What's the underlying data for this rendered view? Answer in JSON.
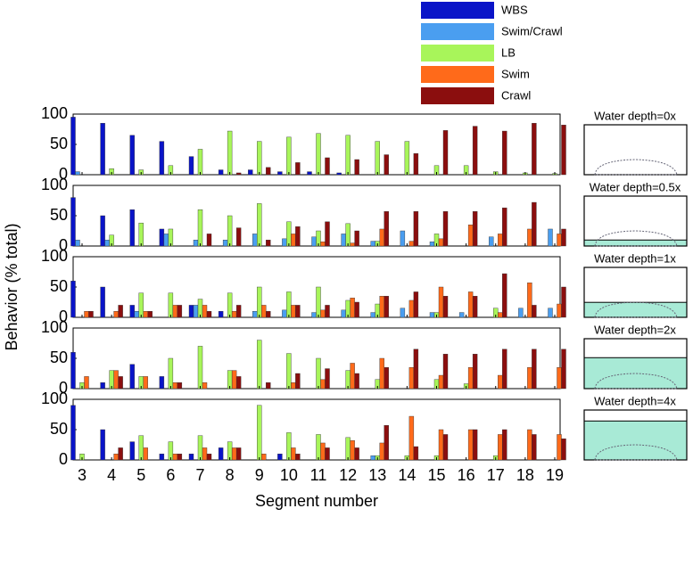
{
  "chart_data": [
    {
      "type": "bar",
      "title": "Water depth=0x",
      "ylim": [
        0,
        100
      ],
      "yticks": [
        0,
        50,
        100
      ],
      "series": [
        {
          "name": "WBS",
          "color": "#0a14c8",
          "values": [
            95,
            85,
            65,
            55,
            30,
            8,
            8,
            5,
            5,
            3,
            0,
            0,
            0,
            0,
            0,
            0,
            0
          ]
        },
        {
          "name": "Swim/Crawl",
          "color": "#4a9ef0",
          "values": [
            5,
            0,
            0,
            0,
            0,
            0,
            0,
            0,
            0,
            0,
            0,
            0,
            0,
            0,
            0,
            0,
            0
          ]
        },
        {
          "name": "LB",
          "color": "#a8f55a",
          "values": [
            0,
            10,
            8,
            15,
            42,
            72,
            55,
            62,
            68,
            65,
            55,
            55,
            15,
            15,
            5,
            3,
            2
          ]
        },
        {
          "name": "Swim",
          "color": "#ff6a1a",
          "values": [
            0,
            0,
            0,
            0,
            0,
            0,
            0,
            0,
            0,
            0,
            0,
            0,
            0,
            0,
            0,
            0,
            0
          ]
        },
        {
          "name": "Crawl",
          "color": "#8b0e0e",
          "values": [
            0,
            0,
            0,
            0,
            0,
            3,
            12,
            20,
            28,
            25,
            33,
            35,
            73,
            80,
            72,
            85,
            82
          ]
        }
      ]
    },
    {
      "type": "bar",
      "title": "Water depth=0.5x",
      "ylim": [
        0,
        100
      ],
      "yticks": [
        0,
        50,
        100
      ],
      "series": [
        {
          "values": [
            80,
            50,
            60,
            28,
            0,
            0,
            0,
            0,
            0,
            0,
            0,
            0,
            0,
            0,
            0,
            0,
            0
          ]
        },
        {
          "values": [
            10,
            10,
            0,
            20,
            10,
            10,
            20,
            12,
            15,
            20,
            8,
            25,
            7,
            0,
            15,
            0,
            28
          ]
        },
        {
          "values": [
            0,
            18,
            38,
            28,
            60,
            50,
            70,
            40,
            25,
            37,
            8,
            0,
            20,
            0,
            0,
            0,
            0
          ]
        },
        {
          "values": [
            0,
            0,
            0,
            0,
            0,
            0,
            0,
            20,
            7,
            5,
            28,
            8,
            12,
            35,
            20,
            28,
            20
          ]
        },
        {
          "values": [
            0,
            0,
            0,
            0,
            20,
            30,
            10,
            32,
            40,
            25,
            57,
            57,
            57,
            57,
            63,
            72,
            28
          ]
        }
      ]
    },
    {
      "type": "bar",
      "title": "Water depth=1x",
      "ylabel": "Behavior (% total)",
      "ylim": [
        0,
        100
      ],
      "yticks": [
        0,
        50,
        100
      ],
      "series": [
        {
          "values": [
            60,
            50,
            20,
            0,
            20,
            10,
            0,
            0,
            0,
            0,
            0,
            0,
            0,
            0,
            0,
            0,
            0
          ]
        },
        {
          "values": [
            0,
            0,
            10,
            0,
            20,
            0,
            10,
            12,
            8,
            12,
            8,
            15,
            8,
            8,
            0,
            15,
            15
          ]
        },
        {
          "values": [
            0,
            0,
            40,
            40,
            30,
            40,
            50,
            42,
            50,
            28,
            22,
            0,
            8,
            0,
            15,
            0,
            0
          ]
        },
        {
          "values": [
            10,
            10,
            10,
            20,
            20,
            10,
            20,
            20,
            12,
            32,
            35,
            28,
            50,
            42,
            8,
            57,
            22
          ]
        },
        {
          "values": [
            10,
            20,
            10,
            20,
            10,
            20,
            10,
            20,
            20,
            25,
            35,
            42,
            35,
            35,
            72,
            20,
            50
          ]
        }
      ]
    },
    {
      "type": "bar",
      "title": "Water depth=2x",
      "ylim": [
        0,
        100
      ],
      "yticks": [
        0,
        50,
        100
      ],
      "series": [
        {
          "values": [
            60,
            10,
            40,
            20,
            0,
            0,
            0,
            0,
            0,
            0,
            0,
            0,
            0,
            0,
            0,
            0,
            0
          ]
        },
        {
          "values": [
            0,
            0,
            0,
            0,
            0,
            0,
            0,
            0,
            0,
            0,
            0,
            0,
            0,
            0,
            0,
            0,
            0
          ]
        },
        {
          "values": [
            10,
            30,
            20,
            50,
            70,
            30,
            80,
            58,
            50,
            30,
            15,
            0,
            15,
            8,
            0,
            0,
            0
          ]
        },
        {
          "values": [
            20,
            30,
            20,
            10,
            10,
            30,
            0,
            10,
            15,
            42,
            50,
            35,
            22,
            35,
            22,
            35,
            35
          ]
        },
        {
          "values": [
            0,
            20,
            0,
            10,
            0,
            20,
            10,
            25,
            33,
            25,
            35,
            65,
            57,
            57,
            65,
            65,
            65
          ]
        }
      ]
    },
    {
      "type": "bar",
      "title": "Water depth=4x",
      "xlabel": "Segment number",
      "ylim": [
        0,
        100
      ],
      "yticks": [
        0,
        50,
        100
      ],
      "categories": [
        3,
        4,
        5,
        6,
        7,
        8,
        9,
        10,
        11,
        12,
        13,
        14,
        15,
        16,
        17,
        18,
        19
      ],
      "series": [
        {
          "values": [
            90,
            50,
            30,
            10,
            10,
            20,
            0,
            10,
            0,
            0,
            0,
            0,
            0,
            0,
            0,
            0,
            0
          ]
        },
        {
          "values": [
            0,
            0,
            0,
            0,
            0,
            0,
            0,
            0,
            0,
            0,
            7,
            0,
            0,
            0,
            0,
            0,
            0
          ]
        },
        {
          "values": [
            10,
            0,
            40,
            30,
            40,
            30,
            90,
            45,
            42,
            37,
            7,
            7,
            7,
            0,
            7,
            0,
            0
          ]
        },
        {
          "values": [
            0,
            10,
            20,
            10,
            20,
            20,
            10,
            20,
            28,
            32,
            28,
            72,
            50,
            50,
            42,
            50,
            42
          ]
        },
        {
          "values": [
            0,
            20,
            0,
            10,
            10,
            20,
            0,
            10,
            20,
            20,
            57,
            22,
            42,
            50,
            50,
            42,
            35
          ]
        }
      ]
    }
  ]
}
